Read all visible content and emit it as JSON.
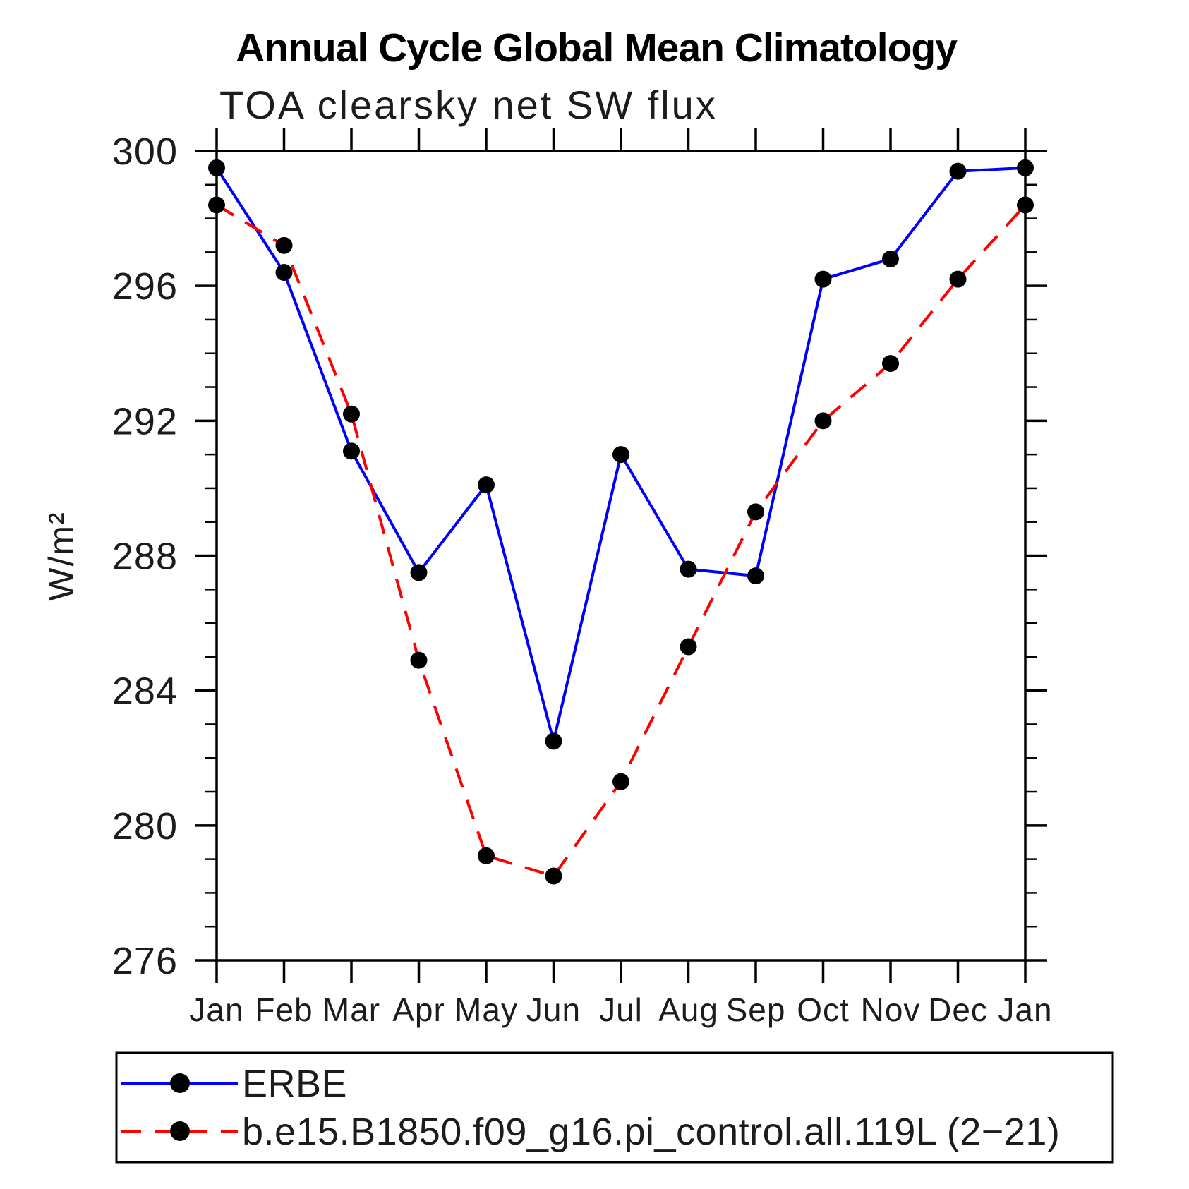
{
  "chart_data": {
    "type": "line",
    "title": "Annual Cycle Global Mean Climatology",
    "subtitle": "TOA clearsky net SW flux",
    "ylabel": "W/m²",
    "xlabel": "",
    "categories": [
      "Jan",
      "Feb",
      "Mar",
      "Apr",
      "May",
      "Jun",
      "Jul",
      "Aug",
      "Sep",
      "Oct",
      "Nov",
      "Dec",
      "Jan"
    ],
    "ylim": [
      276,
      300
    ],
    "yticks": [
      300,
      296,
      292,
      288,
      284,
      280,
      276
    ],
    "yminor_step": 1,
    "grid": false,
    "legend_position": "bottom-left-box",
    "frame_color": "#000000",
    "series": [
      {
        "id": "erbe",
        "name": "ERBE",
        "color": "#0000ff",
        "line_style": "solid",
        "marker": "filled-circle",
        "marker_color": "#000000",
        "values": [
          299.5,
          296.4,
          291.1,
          287.5,
          290.1,
          282.5,
          291.0,
          287.6,
          287.4,
          296.2,
          296.8,
          299.4,
          299.5
        ]
      },
      {
        "id": "model",
        "name": "b.e15.B1850.f09_g16.pi_control.all.119L (2−21)",
        "color": "#ff0000",
        "line_style": "dashed",
        "marker": "filled-circle",
        "marker_color": "#000000",
        "values": [
          298.4,
          297.2,
          292.2,
          284.9,
          279.1,
          278.5,
          281.3,
          285.3,
          289.3,
          292.0,
          293.7,
          296.2,
          298.4
        ]
      }
    ]
  }
}
